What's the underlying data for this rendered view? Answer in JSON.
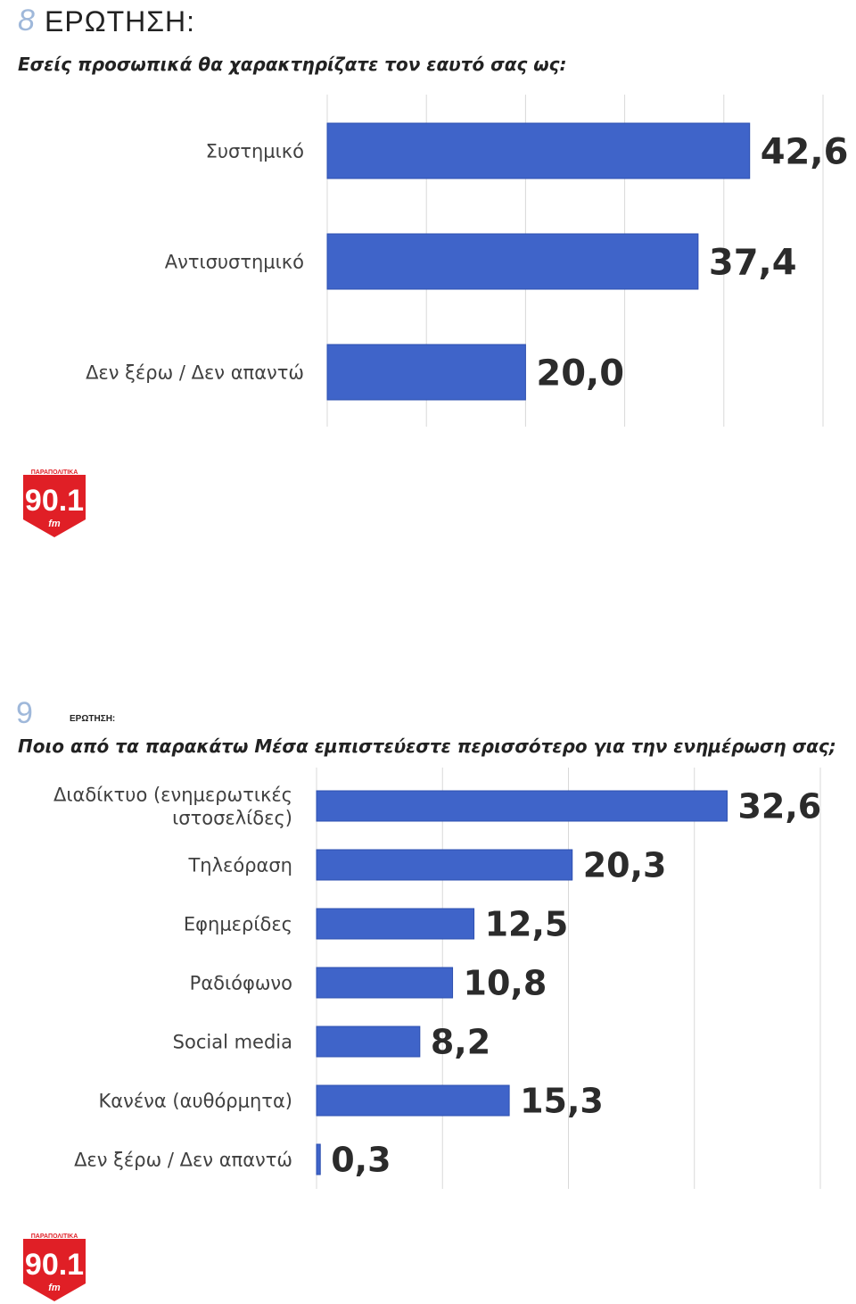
{
  "colors": {
    "bar": "#3f64c9",
    "bar_dark": "#2d4fb0",
    "grid": "#d9d9d9",
    "logo_red": "#e01f26"
  },
  "sections": [
    {
      "number": "8",
      "label": "ΕΡΩΤΗΣΗ:",
      "question": "Εσείς προσωπικά θα χαρακτηρίζατε τον εαυτό σας ως:"
    },
    {
      "number": "9",
      "label": "ΕΡΩΤΗΣΗ:",
      "question": "Ποιο από τα παρακάτω Μέσα εμπιστεύεστε περισσότερο για την ενημέρωση σας;"
    }
  ],
  "logo": {
    "top_text": "ΠΑΡΑΠΟΛΙΤΙΚΑ",
    "main_text": "90.1",
    "sub_text": "fm"
  },
  "chart_data": [
    {
      "type": "bar",
      "orientation": "horizontal",
      "categories": [
        "Συστημικό",
        "Αντισυστημικό",
        "Δεν ξέρω / Δεν απαντώ"
      ],
      "values": [
        42.6,
        37.4,
        20.0
      ],
      "value_labels": [
        "42,6",
        "37,4",
        "20,0"
      ],
      "xlim": [
        0,
        50
      ],
      "grid": true
    },
    {
      "type": "bar",
      "orientation": "horizontal",
      "categories": [
        [
          "Διαδίκτυο (ενημερωτικές",
          "ιστοσελίδες)"
        ],
        [
          "Τηλεόραση"
        ],
        [
          "Εφημερίδες"
        ],
        [
          "Ραδιόφωνο"
        ],
        [
          "Social media"
        ],
        [
          "Κανένα (αυθόρμητα)"
        ],
        [
          "Δεν ξέρω / Δεν απαντώ"
        ]
      ],
      "values": [
        32.6,
        20.3,
        12.5,
        10.8,
        8.2,
        15.3,
        0.3
      ],
      "value_labels": [
        "32,6",
        "20,3",
        "12,5",
        "10,8",
        "8,2",
        "15,3",
        "0,3"
      ],
      "xlim": [
        0,
        40
      ],
      "grid": true
    }
  ]
}
